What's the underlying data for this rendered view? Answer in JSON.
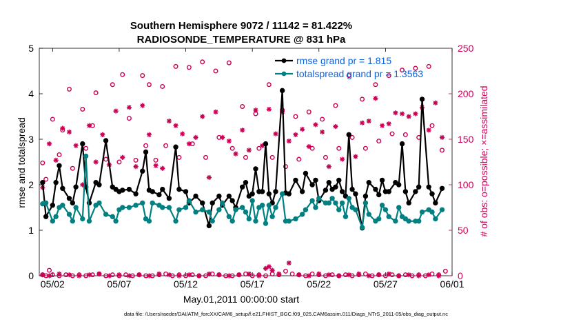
{
  "chart_data": {
    "type": "line",
    "title": "Southern Hemisphere 9072 / 11142 = 81.422%",
    "subtitle": "RADIOSONDE_TEMPERATURE @ 831 hPa",
    "xlabel": "May.01,2011 00:00:00 start",
    "ylabel": "rmse and totalspread",
    "y2label": "# of obs: o=possible; ×=assimilated",
    "footnote": "data file: /Users/raeder/DAI/ATM_forcXX/CAM6_setup/f.e21.FHIST_BGC.f09_025.CAM6assim.011/Diags_NTrS_2011-05/obs_diag_output.nc",
    "xlim": [
      1,
      32
    ],
    "ylim": [
      0,
      5
    ],
    "y2lim": [
      0,
      250
    ],
    "xticks": [
      {
        "x": 2,
        "label": "05/02"
      },
      {
        "x": 7,
        "label": "05/07"
      },
      {
        "x": 12,
        "label": "05/12"
      },
      {
        "x": 17,
        "label": "05/17"
      },
      {
        "x": 22,
        "label": "05/22"
      },
      {
        "x": 27,
        "label": "05/27"
      },
      {
        "x": 32,
        "label": "06/01"
      }
    ],
    "yticks": [
      "0",
      "1",
      "2",
      "3",
      "4",
      "5"
    ],
    "y2ticks": [
      "0",
      "50",
      "100",
      "150",
      "200",
      "250"
    ],
    "colors": {
      "rmse": "#000000",
      "spread": "#008080",
      "obs": "#cc0055",
      "legend_text": "#0b63e0"
    },
    "series": [
      {
        "name": "rmse grand pr = 1.815",
        "x": [
          1.25,
          1.5,
          2.0,
          2.25,
          2.5,
          2.75,
          3.25,
          3.5,
          3.75,
          4.25,
          4.5,
          4.75,
          5.25,
          5.5,
          6.0,
          6.5,
          6.75,
          7.0,
          7.25,
          7.75,
          8.25,
          8.75,
          9.0,
          9.25,
          9.5,
          10.0,
          10.25,
          10.75,
          11.25,
          11.5,
          12.0,
          12.25,
          12.75,
          13.25,
          13.75,
          14.0,
          14.5,
          14.75,
          15.25,
          15.5,
          15.75,
          16.25,
          16.5,
          16.75,
          17.0,
          17.25,
          17.5,
          17.75,
          18.0,
          18.25,
          18.5,
          18.75,
          19.25,
          19.5,
          19.75,
          20.25,
          20.75,
          21.0,
          21.5,
          21.75,
          22.0,
          22.5,
          22.75,
          23.0,
          23.25,
          23.5,
          23.75,
          24.0,
          24.25,
          24.5,
          24.75,
          25.25,
          25.5,
          25.75,
          26.25,
          26.5,
          26.75,
          27.0,
          27.25,
          27.75,
          28.0,
          28.25,
          28.5,
          28.75,
          29.25,
          29.5,
          29.75,
          30.25,
          30.5,
          30.75,
          31.25
        ],
        "y": [
          2.05,
          1.3,
          1.55,
          2.05,
          2.42,
          1.92,
          1.7,
          1.6,
          1.95,
          2.9,
          1.95,
          1.6,
          2.05,
          2.0,
          2.97,
          1.95,
          1.9,
          1.85,
          1.88,
          1.9,
          1.8,
          2.3,
          2.72,
          1.88,
          1.85,
          1.78,
          1.9,
          1.7,
          2.83,
          1.9,
          1.85,
          1.6,
          1.75,
          1.6,
          1.1,
          1.6,
          1.75,
          1.55,
          1.75,
          1.65,
          1.5,
          1.95,
          2.05,
          1.75,
          1.8,
          2.35,
          1.85,
          1.85,
          2.9,
          1.8,
          1.6,
          1.85,
          4.07,
          1.82,
          1.8,
          2.1,
          1.85,
          2.25,
          2.0,
          2.1,
          1.65,
          1.88,
          2.05,
          1.9,
          1.95,
          2.1,
          1.85,
          1.75,
          3.1,
          1.9,
          1.8,
          1.05,
          1.75,
          2.05,
          1.9,
          1.78,
          2.1,
          1.85,
          1.85,
          2.05,
          2.0,
          2.9,
          1.85,
          1.6,
          1.85,
          1.95,
          3.88,
          1.95,
          1.8,
          1.6,
          1.92
        ]
      },
      {
        "name": "totalspread grand pr = 1.3563",
        "x": [
          1.25,
          1.5,
          2.0,
          2.25,
          2.5,
          2.75,
          3.25,
          3.5,
          3.75,
          4.25,
          4.5,
          4.75,
          5.25,
          5.5,
          6.0,
          6.5,
          6.75,
          7.0,
          7.25,
          7.75,
          8.25,
          8.75,
          9.0,
          9.25,
          9.5,
          10.0,
          10.25,
          10.75,
          11.25,
          11.5,
          12.0,
          12.25,
          12.75,
          13.25,
          13.75,
          14.0,
          14.5,
          14.75,
          15.25,
          15.5,
          15.75,
          16.25,
          16.5,
          16.75,
          17.0,
          17.25,
          17.5,
          17.75,
          18.0,
          18.25,
          18.5,
          18.75,
          19.25,
          19.5,
          19.75,
          20.25,
          20.75,
          21.0,
          21.5,
          21.75,
          22.0,
          22.5,
          22.75,
          23.0,
          23.25,
          23.5,
          23.75,
          24.0,
          24.25,
          24.5,
          24.75,
          25.25,
          25.5,
          25.75,
          26.25,
          26.5,
          26.75,
          27.0,
          27.25,
          27.75,
          28.0,
          28.25,
          28.5,
          28.75,
          29.25,
          29.5,
          29.75,
          30.25,
          30.5,
          30.75,
          31.25
        ],
        "y": [
          1.58,
          1.6,
          1.2,
          1.3,
          1.5,
          1.55,
          1.35,
          1.2,
          1.5,
          1.25,
          2.63,
          1.2,
          1.55,
          1.6,
          1.35,
          1.3,
          1.2,
          1.45,
          1.5,
          1.5,
          1.55,
          1.6,
          1.25,
          1.2,
          1.6,
          1.55,
          1.5,
          1.5,
          1.2,
          1.45,
          1.5,
          1.65,
          1.4,
          1.45,
          1.4,
          1.2,
          1.45,
          1.6,
          1.3,
          1.2,
          1.45,
          1.5,
          1.4,
          1.25,
          1.65,
          1.2,
          1.5,
          1.55,
          1.15,
          1.55,
          1.3,
          1.5,
          1.8,
          1.2,
          1.2,
          1.25,
          1.35,
          1.45,
          1.65,
          1.5,
          1.7,
          1.6,
          1.6,
          1.7,
          1.6,
          1.45,
          1.6,
          1.3,
          1.7,
          1.5,
          1.45,
          1.06,
          1.6,
          1.35,
          1.2,
          1.25,
          1.55,
          1.45,
          1.3,
          1.2,
          1.5,
          1.3,
          1.25,
          1.2,
          1.2,
          1.2,
          1.4,
          1.45,
          1.4,
          1.25,
          1.45
        ]
      }
    ],
    "obs_possible": {
      "x": [
        1.25,
        1.5,
        2.0,
        2.5,
        2.75,
        3.25,
        3.5,
        4.25,
        4.5,
        5.0,
        5.25,
        6.0,
        6.5,
        7.0,
        7.25,
        7.75,
        8.25,
        8.75,
        9.0,
        9.25,
        9.75,
        10.25,
        10.5,
        11.25,
        11.5,
        12.25,
        12.5,
        13.25,
        13.5,
        14.25,
        14.5,
        15.25,
        15.5,
        16.25,
        16.5,
        17.25,
        17.5,
        18.25,
        18.5,
        19.25,
        19.5,
        20.25,
        20.5,
        21.25,
        21.5,
        22.25,
        22.5,
        23.25,
        23.5,
        24.25,
        24.5,
        25.25,
        25.5,
        26.25,
        26.5,
        27.25,
        27.5,
        28.25,
        28.5,
        29.25,
        29.5,
        30.25,
        30.5,
        31.25
      ],
      "y": [
        124,
        106,
        172,
        133,
        160,
        205,
        118,
        183,
        140,
        165,
        201,
        128,
        210,
        125,
        221,
        173,
        127,
        220,
        143,
        210,
        127,
        208,
        143,
        230,
        130,
        229,
        145,
        235,
        130,
        225,
        152,
        234,
        140,
        186,
        130,
        178,
        140,
        210,
        130,
        182,
        120,
        175,
        128,
        180,
        140,
        172,
        130,
        187,
        140,
        220,
        152,
        194,
        140,
        210,
        148,
        220,
        156,
        226,
        155,
        228,
        152,
        230,
        165,
        138
      ]
    },
    "obs_assimilated": {
      "x": [
        1.25,
        1.75,
        2.25,
        2.75,
        3.25,
        3.75,
        4.25,
        4.75,
        5.25,
        5.75,
        6.25,
        6.75,
        7.25,
        7.75,
        8.25,
        8.75,
        9.25,
        9.75,
        10.25,
        10.75,
        11.25,
        11.75,
        12.25,
        12.75,
        13.25,
        13.75,
        14.25,
        14.75,
        15.25,
        15.75,
        16.25,
        16.75,
        17.25,
        17.75,
        18.25,
        18.75,
        19.25,
        19.75,
        20.25,
        20.75,
        21.25,
        21.75,
        22.25,
        22.75,
        23.25,
        23.75,
        24.25,
        24.75,
        25.25,
        25.75,
        26.25,
        26.75,
        27.25,
        27.75,
        28.25,
        28.75,
        29.25,
        29.75,
        30.25,
        30.75,
        31.25
      ],
      "y": [
        97,
        145,
        127,
        162,
        158,
        143,
        100,
        165,
        125,
        155,
        122,
        181,
        130,
        185,
        120,
        187,
        155,
        121,
        118,
        170,
        165,
        156,
        145,
        152,
        175,
        108,
        180,
        152,
        148,
        134,
        160,
        138,
        182,
        143,
        183,
        156,
        180,
        148,
        155,
        161,
        142,
        166,
        158,
        120,
        164,
        128,
        155,
        131,
        168,
        170,
        195,
        165,
        167,
        179,
        178,
        175,
        178,
        185,
        160,
        190,
        152
      ]
    },
    "obs_possible_low": {
      "x": [
        1.25,
        1.5,
        1.75,
        2.0,
        2.5,
        3.0,
        3.5,
        4.0,
        4.5,
        5.0,
        5.5,
        6.0,
        6.5,
        7.0,
        7.5,
        8.0,
        8.5,
        9.0,
        9.5,
        10.0,
        10.5,
        11.0,
        11.5,
        12.0,
        12.5,
        13.0,
        13.5,
        14.0,
        14.5,
        15.0,
        15.5,
        16.0,
        16.5,
        17.0,
        17.5,
        18.0,
        18.5,
        19.0,
        19.5,
        20.0,
        20.5,
        21.0,
        21.5,
        22.0,
        22.5,
        23.0,
        23.5,
        24.0,
        24.5,
        25.0,
        25.5,
        26.0,
        26.5,
        27.0,
        27.5,
        28.0,
        28.5,
        29.0,
        29.5,
        30.0,
        30.5,
        31.0,
        31.5
      ],
      "y": [
        1,
        0,
        6,
        1,
        0,
        1,
        0,
        1,
        0,
        1,
        2,
        0,
        1,
        0,
        1,
        0,
        1,
        0,
        0,
        1,
        2,
        0,
        1,
        0,
        1,
        0,
        0,
        2,
        1,
        0,
        0,
        1,
        2,
        0,
        1,
        0,
        2,
        1,
        5,
        2,
        1,
        0,
        2,
        1,
        0,
        1,
        0,
        1,
        0,
        1,
        2,
        0,
        1,
        0,
        1,
        0,
        1,
        0,
        1,
        0,
        2,
        1,
        5
      ]
    },
    "obs_assimilated_low": {
      "x": [
        1.25,
        1.75,
        2.5,
        3.25,
        4.0,
        4.75,
        5.5,
        6.25,
        7.0,
        7.75,
        8.5,
        9.25,
        10.0,
        10.75,
        11.5,
        12.25,
        13.0,
        13.75,
        14.5,
        15.25,
        16.0,
        16.75,
        17.5,
        18.0,
        18.25,
        18.5,
        19.0,
        19.75,
        20.5,
        21.25,
        22.0,
        22.75,
        23.5,
        24.25,
        25.0,
        25.75,
        26.5,
        27.25,
        28.0,
        28.75,
        29.5,
        30.25,
        31.0
      ],
      "y": [
        1,
        0,
        2,
        1,
        0,
        1,
        2,
        0,
        1,
        0,
        1,
        0,
        2,
        1,
        0,
        1,
        0,
        2,
        1,
        0,
        1,
        2,
        0,
        8,
        10,
        6,
        2,
        14,
        1,
        0,
        2,
        1,
        0,
        1,
        2,
        0,
        1,
        2,
        0,
        1,
        0,
        1,
        0
      ]
    }
  }
}
